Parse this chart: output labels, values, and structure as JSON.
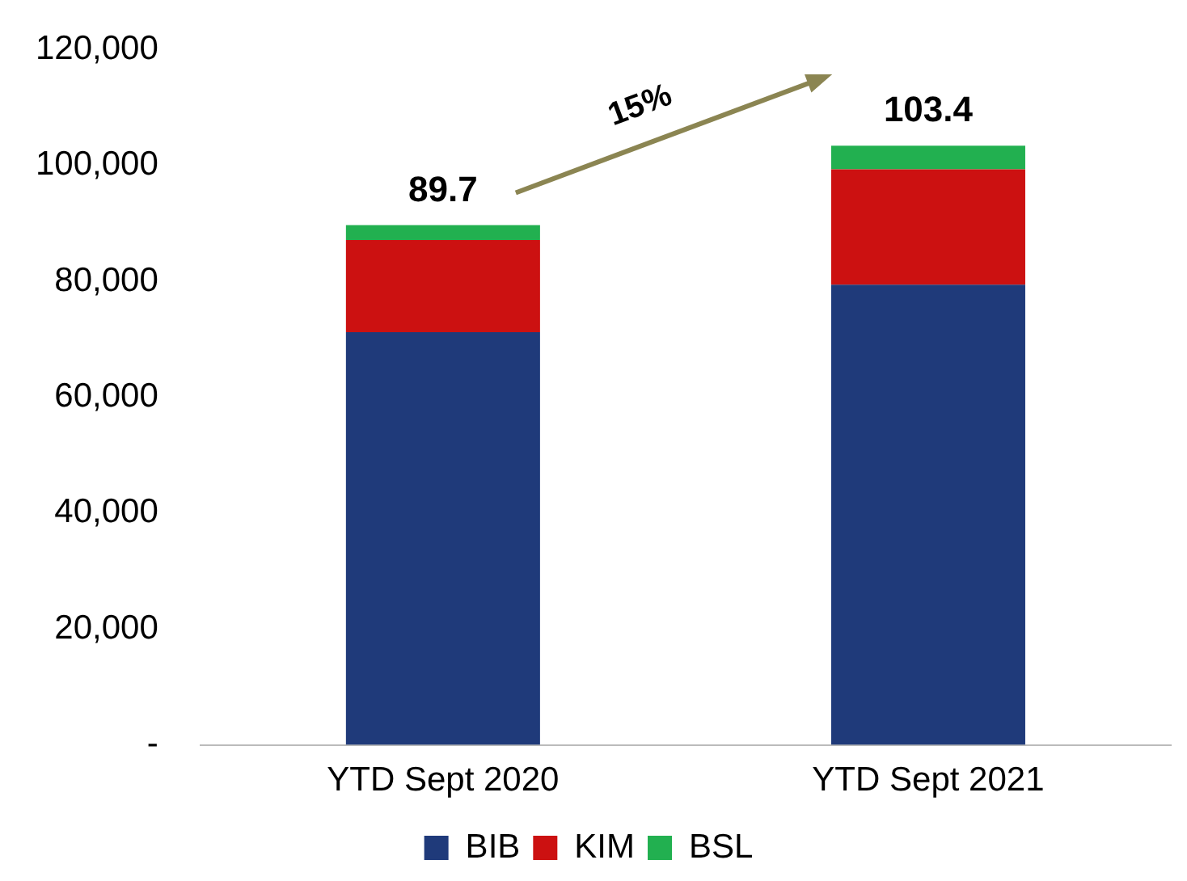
{
  "chart_data": {
    "type": "bar",
    "stacked": true,
    "categories": [
      "YTD Sept 2020",
      "YTD Sept 2021"
    ],
    "series": [
      {
        "name": "BIB",
        "color": "#1f3a7a",
        "values": [
          71200,
          79400
        ]
      },
      {
        "name": "KIM",
        "color": "#cc1111",
        "values": [
          15900,
          19900
        ]
      },
      {
        "name": "BSL",
        "color": "#22b050",
        "values": [
          2600,
          4100
        ]
      }
    ],
    "annotations": [
      {
        "text": "89.7",
        "x": "YTD Sept 2020",
        "y": 89700
      },
      {
        "text": "103.4",
        "x": "YTD Sept 2021",
        "y": 103400
      },
      "15%"
    ],
    "ylim": [
      0,
      120000
    ],
    "yticks": [
      {
        "value": 0,
        "label": "-"
      },
      {
        "value": 20000,
        "label": "20,000"
      },
      {
        "value": 40000,
        "label": "40,000"
      },
      {
        "value": 60000,
        "label": "60,000"
      },
      {
        "value": 80000,
        "label": "80,000"
      },
      {
        "value": 100000,
        "label": "100,000"
      },
      {
        "value": 120000,
        "label": "120,000"
      }
    ],
    "grid": false,
    "legend": "bottom"
  }
}
